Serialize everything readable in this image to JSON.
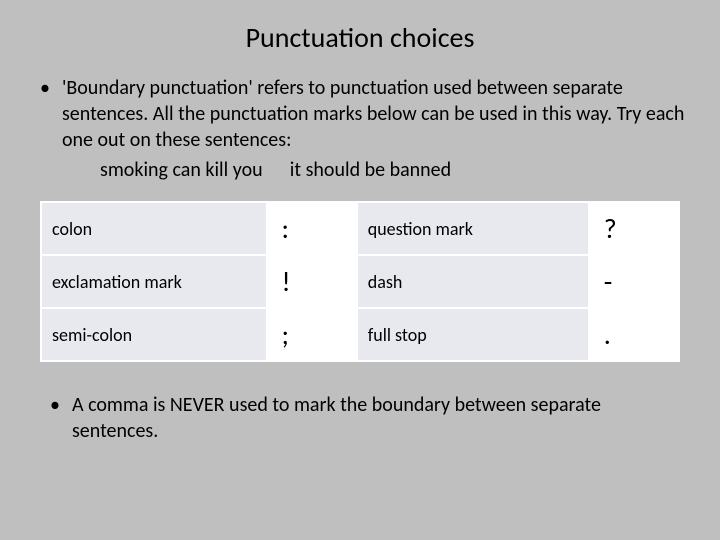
{
  "title": "Punctuation choices",
  "bullet1": "'Boundary punctuation' refers to punctuation used between separate sentences. All the punctuation marks below can be used in this way. Try each one out on these sentences:",
  "example1": "smoking can kill you",
  "example2": "it should be banned",
  "table": {
    "rows": [
      {
        "label1": "colon",
        "symbol1": ":",
        "label2": "question mark",
        "symbol2": "?"
      },
      {
        "label1": "exclamation mark",
        "symbol1": "!",
        "label2": "dash",
        "symbol2": "-"
      },
      {
        "label1": "semi-colon",
        "symbol1": ";",
        "label2": "full stop",
        "symbol2": "."
      }
    ],
    "label_bg": "#e7e9ef",
    "symbol_bg": "#ffffff",
    "border_color": "#ffffff",
    "label_fontsize": 18,
    "symbol_fontsize": 28
  },
  "bullet2": "A comma is NEVER used to mark the boundary between separate sentences.",
  "colors": {
    "background": "#bfbfbf",
    "text": "#000000"
  }
}
